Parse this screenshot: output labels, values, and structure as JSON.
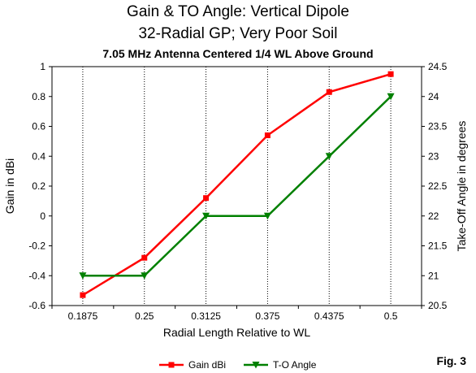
{
  "chart_data": {
    "type": "line",
    "title": "Gain & TO Angle:  Vertical Dipole",
    "title2": "32-Radial GP; Very Poor Soil",
    "subtitle": "7.05 MHz Antenna Centered 1/4 WL Above Ground",
    "xlabel": "Radial Length Relative to WL",
    "ylabel": "Gain in dBi",
    "y2label": "Take-Off Angle in degrees",
    "categories": [
      "0.1875",
      "0.25",
      "0.3125",
      "0.375",
      "0.4375",
      "0.5"
    ],
    "ylim": [
      -0.6,
      1
    ],
    "yticks": [
      "1",
      "0.8",
      "0.6",
      "0.4",
      "0.2",
      "0",
      "-0.2",
      "-0.4",
      "-0.6"
    ],
    "y2lim": [
      20.5,
      24.5
    ],
    "y2ticks": [
      "24.5",
      "24",
      "23.5",
      "23",
      "22.5",
      "22",
      "21.5",
      "21",
      "20.5"
    ],
    "grid": "vertical",
    "legend_position": "bottom",
    "series": [
      {
        "name": "Gain dBi",
        "axis": "left",
        "color": "#ff0000",
        "marker": "square",
        "values": [
          -0.53,
          -0.28,
          0.12,
          0.54,
          0.83,
          0.95
        ]
      },
      {
        "name": "T-O Angle",
        "axis": "right",
        "color": "#008000",
        "marker": "triangle-down",
        "values": [
          21,
          21,
          22,
          22,
          23,
          24
        ]
      }
    ]
  },
  "figure_label": "Fig. 3"
}
